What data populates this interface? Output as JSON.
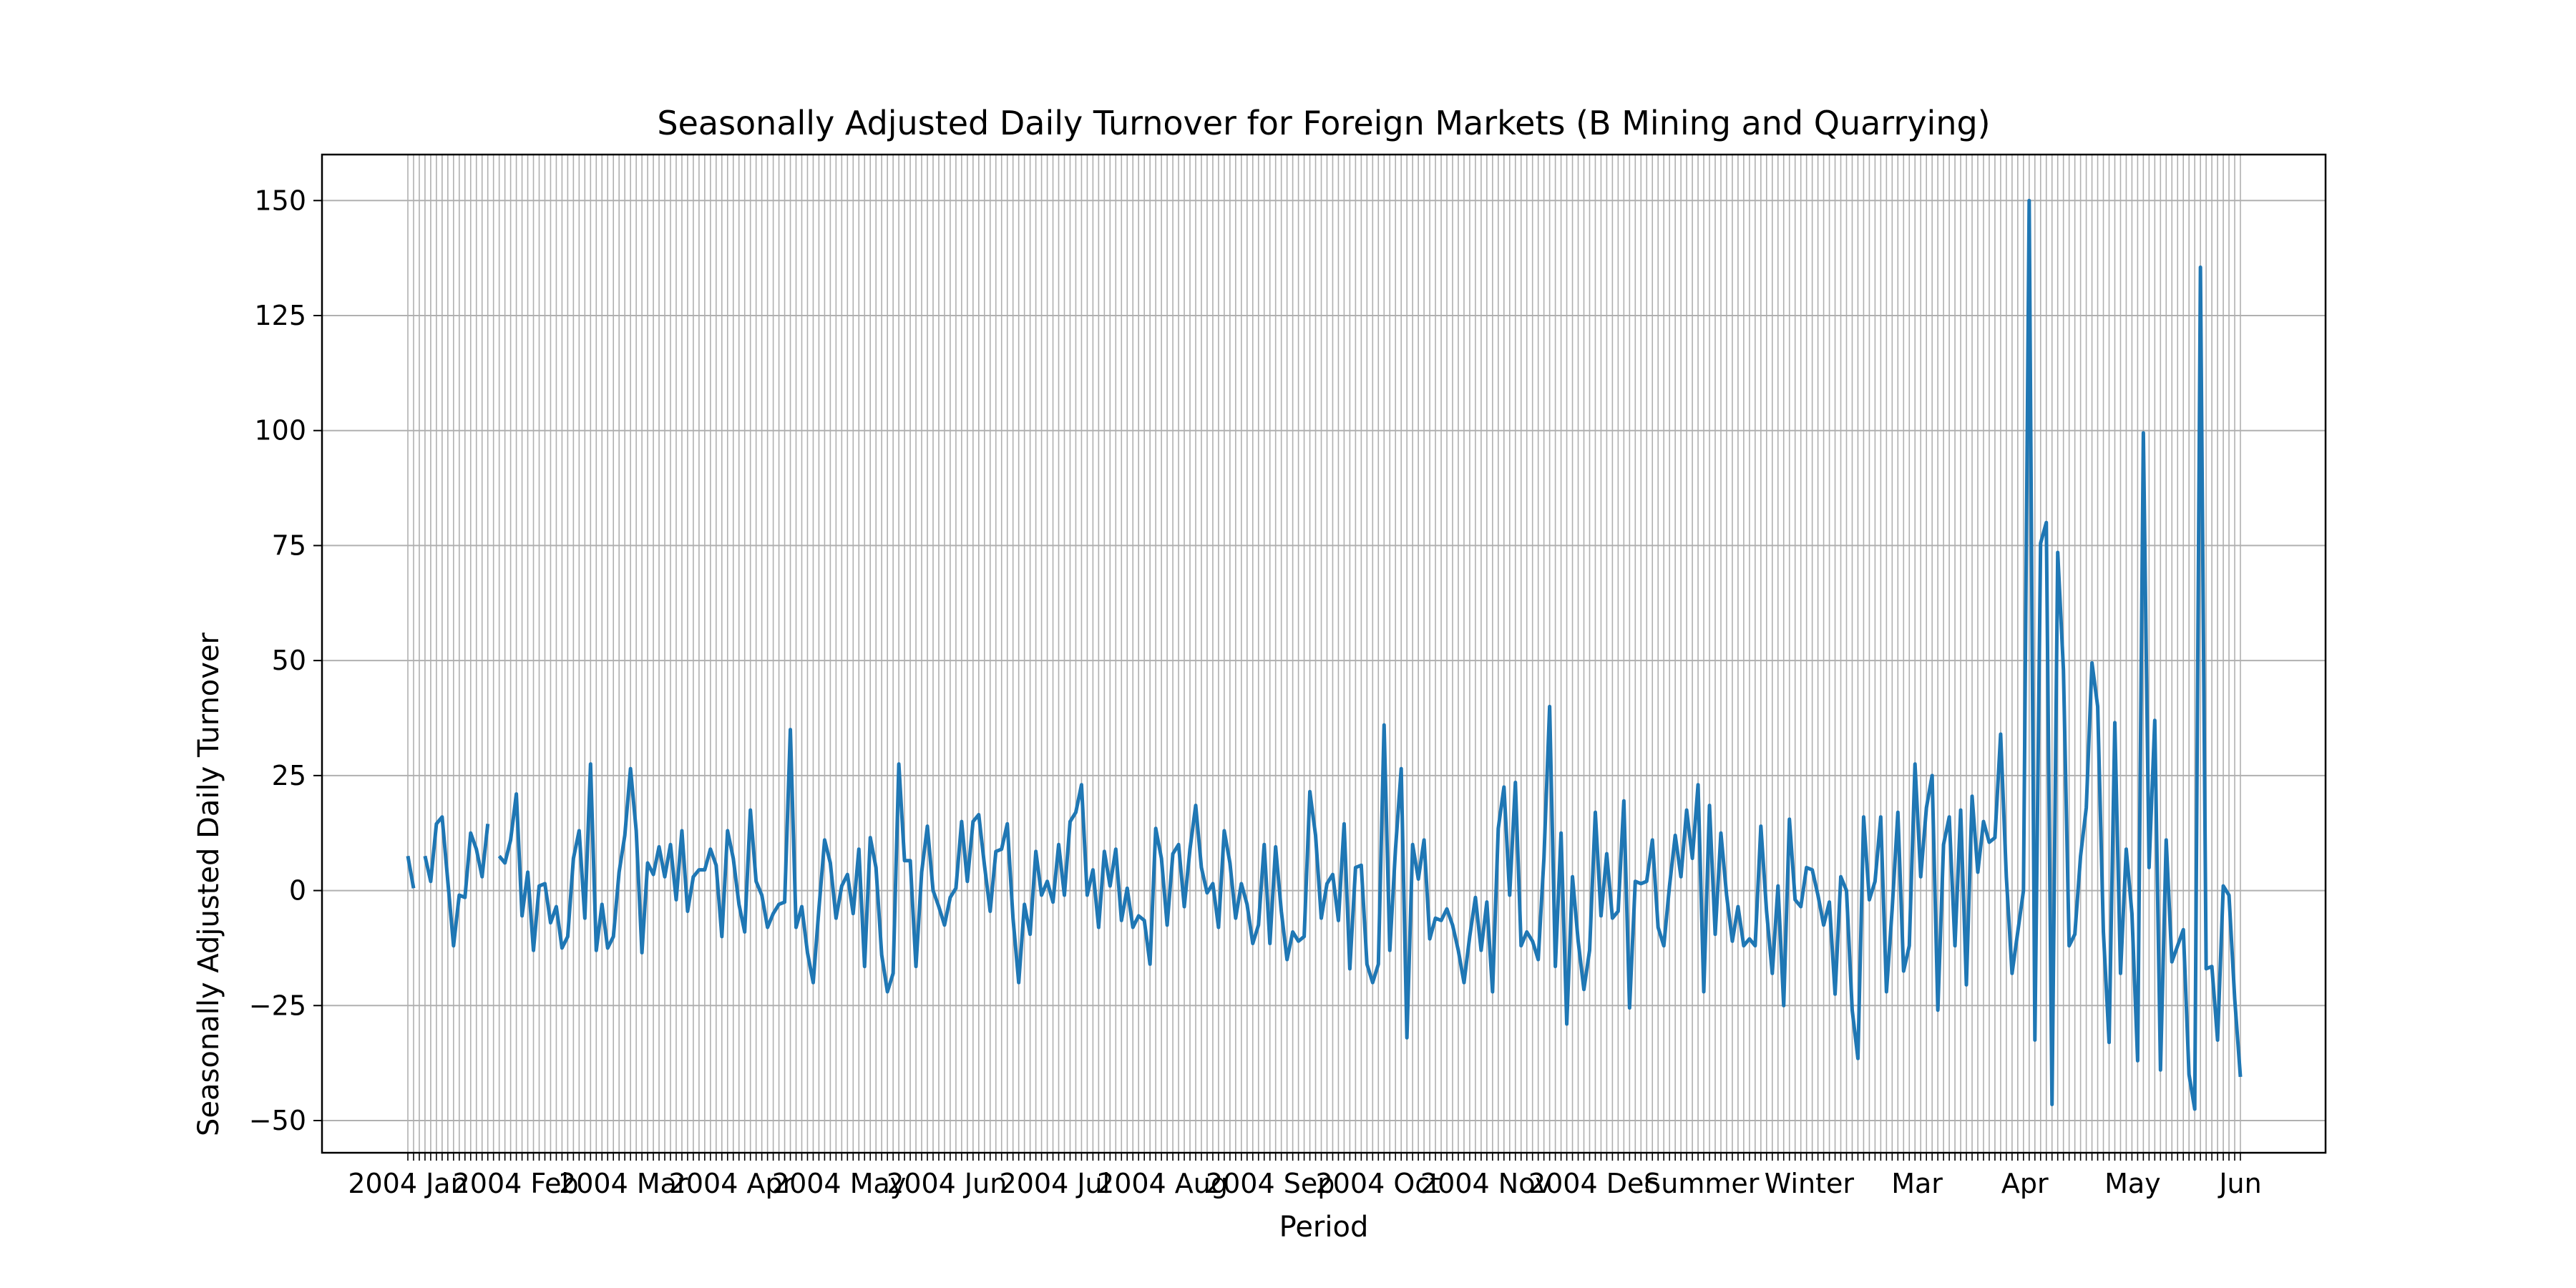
{
  "chart_data": {
    "type": "line",
    "title": "Seasonally Adjusted Daily Turnover for Foreign Markets (B Mining and Quarrying)",
    "xlabel": "Period",
    "ylabel": "Seasonally Adjusted Daily Turnover",
    "ylim": [
      -57,
      160
    ],
    "yticks": [
      -50,
      -25,
      0,
      25,
      50,
      75,
      100,
      125,
      150
    ],
    "grid": true,
    "legend": "none",
    "line_color": "#1f77b4",
    "grid_color": "#b0b0b0",
    "x_tick_labels_visible": [
      "2004 Jan",
      "2004 Feb",
      "2004 Mar",
      "2004 Apr",
      "2004 May",
      "2004 Jun",
      "2004 Jul",
      "2004 Aug",
      "2004 Sep",
      "2004 Oct",
      "2004 Nov",
      "2004 Dec",
      "Summer",
      "Winter",
      "Mar",
      "Apr",
      "May",
      "Jun"
    ],
    "series": [
      {
        "values": [
          7.5,
          0.5,
          null,
          7.5,
          2.0,
          14.5,
          16.0,
          2.0,
          -12.0,
          -1.0,
          -1.5,
          12.5,
          9.0,
          3.0,
          14.5,
          null,
          7.5,
          6.0,
          11.0,
          21.0,
          -5.5,
          4.0,
          -13.0,
          1.0,
          1.5,
          -7.0,
          -3.5,
          -12.5,
          -10.0,
          7.0,
          13.0,
          -6.0,
          27.5,
          -13.0,
          -3.0,
          -12.5,
          -10.0,
          4.0,
          12.0,
          26.5,
          13.0,
          -13.5,
          6.0,
          3.5,
          9.5,
          3.0,
          10.0,
          -2.0,
          13.0,
          -4.5,
          3.0,
          4.5,
          4.5,
          9.0,
          5.5,
          -10.0,
          13.0,
          7.0,
          -3.0,
          -9.0,
          17.5,
          2.0,
          -1.0,
          -8.0,
          -5.0,
          -3.0,
          -2.5,
          35.0,
          -8.0,
          -3.5,
          -13.5,
          -20.0,
          -4.0,
          11.0,
          6.0,
          -6.0,
          1.0,
          3.5,
          -5.0,
          9.0,
          -16.5,
          11.5,
          5.0,
          -14.0,
          -22.0,
          -18.0,
          27.5,
          6.5,
          6.5,
          -16.5,
          4.0,
          14.0,
          0.0,
          -3.5,
          -7.5,
          -1.5,
          0.5,
          15.0,
          2.0,
          15.0,
          16.5,
          5.5,
          -4.5,
          8.5,
          9.0,
          14.5,
          -6.0,
          -20.0,
          -3.0,
          -9.5,
          8.5,
          -1.0,
          2.0,
          -2.5,
          10.0,
          -1.0,
          15.0,
          17.0,
          23.0,
          -1.0,
          4.5,
          -8.0,
          8.5,
          1.0,
          9.0,
          -6.5,
          0.5,
          -8.0,
          -5.5,
          -6.5,
          -16.0,
          13.5,
          7.0,
          -7.5,
          8.0,
          10.0,
          -3.5,
          9.0,
          18.5,
          5.0,
          -0.5,
          1.5,
          -8.0,
          13.0,
          6.0,
          -6.0,
          1.5,
          -3.0,
          -11.5,
          -7.5,
          10.0,
          -11.5,
          9.5,
          -4.5,
          -15.0,
          -9.0,
          -11.0,
          -10.0,
          21.5,
          12.0,
          -6.0,
          1.5,
          3.5,
          -6.5,
          14.5,
          -17.0,
          5.0,
          5.5,
          -16.0,
          -20.0,
          -16.0,
          36.0,
          -13.0,
          9.0,
          26.5,
          -32.0,
          10.0,
          2.5,
          11.0,
          -10.5,
          -6.0,
          -6.5,
          -4.0,
          -7.5,
          -13.0,
          -20.0,
          -10.0,
          -1.5,
          -13.0,
          -2.5,
          -22.0,
          13.5,
          22.5,
          -1.0,
          23.5,
          -12.0,
          -9.0,
          -11.0,
          -15.0,
          7.0,
          40.0,
          -16.5,
          12.5,
          -29.0,
          3.0,
          -11.0,
          -21.5,
          -13.0,
          17.0,
          -5.5,
          8.0,
          -6.0,
          -4.5,
          19.5,
          -25.5,
          2.0,
          1.5,
          2.0,
          11.0,
          -8.0,
          -12.0,
          1.0,
          12.0,
          3.0,
          17.5,
          7.0,
          23.0,
          -22.0,
          18.5,
          -9.5,
          12.5,
          -1.0,
          -11.0,
          -3.5,
          -12.0,
          -10.5,
          -12.0,
          14.0,
          -4.5,
          -18.0,
          1.0,
          -25.0,
          15.5,
          -2.0,
          -3.5,
          5.0,
          4.5,
          -1.0,
          -7.5,
          -2.5,
          -22.5,
          3.0,
          0.0,
          -26.0,
          -36.5,
          16.0,
          -2.0,
          2.0,
          16.0,
          -22.0,
          -4.0,
          17.0,
          -17.5,
          -12.0,
          27.5,
          3.0,
          18.0,
          25.0,
          -26.0,
          10.0,
          16.0,
          -12.0,
          17.5,
          -20.5,
          20.5,
          4.0,
          15.0,
          10.5,
          11.5,
          34.0,
          3.0,
          -18.0,
          -9.0,
          0.0,
          150.0,
          -32.5,
          75.5,
          80.0,
          -46.5,
          73.5,
          48.0,
          -12.0,
          -9.5,
          7.5,
          18.0,
          49.5,
          40.0,
          -9.0,
          -33.0,
          36.5,
          -18.0,
          9.0,
          -5.0,
          -37.0,
          99.5,
          5.0,
          37.0,
          -39.0,
          11.0,
          -15.5,
          -12.0,
          -8.5,
          -40.0,
          -47.5,
          135.5,
          -17.0,
          -16.5,
          -32.5,
          1.0,
          -1.0,
          -23.5,
          -40.5
        ]
      }
    ]
  }
}
